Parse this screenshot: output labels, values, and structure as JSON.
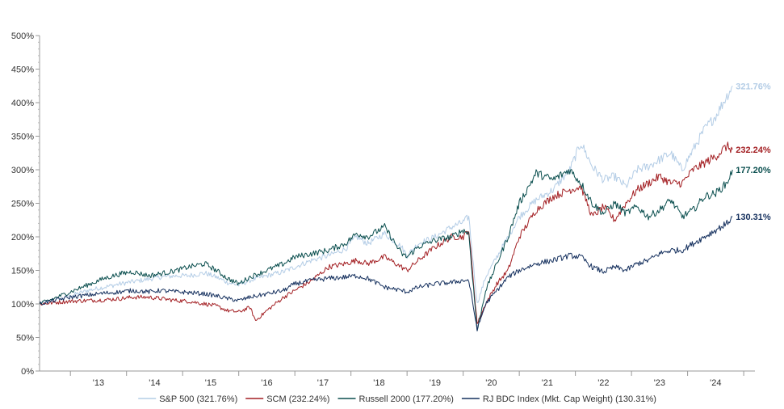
{
  "chart_data": {
    "type": "line",
    "title": "",
    "xlabel": "",
    "ylabel": "",
    "ylim": [
      0,
      500
    ],
    "y_ticks": [
      0,
      50,
      100,
      150,
      200,
      250,
      300,
      350,
      400,
      450,
      500
    ],
    "y_tick_suffix": "%",
    "xlim": [
      2012.45,
      2025.2
    ],
    "x_ticks": [
      {
        "label": "'13",
        "x": 2013.5
      },
      {
        "label": "'14",
        "x": 2014.5
      },
      {
        "label": "'15",
        "x": 2015.5
      },
      {
        "label": "'16",
        "x": 2016.5
      },
      {
        "label": "'17",
        "x": 2017.5
      },
      {
        "label": "'18",
        "x": 2018.5
      },
      {
        "label": "'19",
        "x": 2019.5
      },
      {
        "label": "'20",
        "x": 2020.5
      },
      {
        "label": "'21",
        "x": 2021.5
      },
      {
        "label": "'22",
        "x": 2022.5
      },
      {
        "label": "'23",
        "x": 2023.5
      },
      {
        "label": "'24",
        "x": 2024.5
      }
    ],
    "x_boundaries": [
      2013,
      2014,
      2015,
      2016,
      2017,
      2018,
      2019,
      2020,
      2021,
      2022,
      2023,
      2024,
      2025
    ],
    "grid": false,
    "legend_position": "bottom",
    "series": [
      {
        "name": "S&P 500 (321.76%)",
        "end_label": "321.76%",
        "color": "#b4cde6",
        "x": [
          2012.45,
          2012.7,
          2013.0,
          2013.3,
          2013.6,
          2013.9,
          2014.1,
          2014.4,
          2014.6,
          2014.9,
          2015.1,
          2015.4,
          2015.6,
          2015.8,
          2016.0,
          2016.2,
          2016.5,
          2016.8,
          2017.0,
          2017.3,
          2017.6,
          2017.9,
          2018.1,
          2018.3,
          2018.6,
          2018.9,
          2019.0,
          2019.2,
          2019.5,
          2019.8,
          2020.0,
          2020.1,
          2020.25,
          2020.4,
          2020.6,
          2020.8,
          2021.0,
          2021.3,
          2021.6,
          2021.9,
          2022.1,
          2022.3,
          2022.5,
          2022.7,
          2022.9,
          2023.1,
          2023.3,
          2023.5,
          2023.7,
          2023.9,
          2024.1,
          2024.3,
          2024.5,
          2024.7,
          2024.8
        ],
        "y": [
          100,
          105,
          112,
          120,
          125,
          130,
          133,
          137,
          140,
          142,
          142,
          146,
          140,
          132,
          128,
          135,
          142,
          148,
          155,
          165,
          172,
          182,
          200,
          190,
          205,
          185,
          172,
          190,
          200,
          215,
          222,
          230,
          100,
          140,
          170,
          200,
          230,
          255,
          270,
          300,
          340,
          305,
          285,
          290,
          275,
          300,
          305,
          315,
          325,
          300,
          330,
          360,
          380,
          410,
          425
        ]
      },
      {
        "name": "SCM (232.24%)",
        "end_label": "232.24%",
        "color": "#a31f23",
        "x": [
          2012.45,
          2012.7,
          2013.0,
          2013.3,
          2013.6,
          2013.9,
          2014.1,
          2014.4,
          2014.6,
          2014.9,
          2015.1,
          2015.4,
          2015.6,
          2015.8,
          2016.0,
          2016.2,
          2016.3,
          2016.5,
          2016.8,
          2017.0,
          2017.3,
          2017.6,
          2017.9,
          2018.1,
          2018.3,
          2018.6,
          2018.9,
          2019.0,
          2019.2,
          2019.5,
          2019.8,
          2020.0,
          2020.1,
          2020.25,
          2020.4,
          2020.6,
          2020.8,
          2021.0,
          2021.3,
          2021.6,
          2021.9,
          2022.1,
          2022.3,
          2022.5,
          2022.7,
          2022.9,
          2023.1,
          2023.3,
          2023.5,
          2023.7,
          2023.9,
          2024.1,
          2024.3,
          2024.5,
          2024.7,
          2024.8
        ],
        "y": [
          100,
          102,
          104,
          105,
          106,
          108,
          110,
          110,
          108,
          105,
          104,
          100,
          97,
          90,
          88,
          95,
          75,
          90,
          110,
          120,
          135,
          155,
          160,
          165,
          160,
          170,
          155,
          150,
          165,
          185,
          200,
          200,
          210,
          70,
          100,
          130,
          150,
          200,
          240,
          260,
          270,
          275,
          230,
          245,
          225,
          250,
          270,
          280,
          290,
          280,
          280,
          300,
          310,
          320,
          335,
          330
        ]
      },
      {
        "name": "Russell 2000 (177.20%)",
        "end_label": "177.20%",
        "color": "#0b4f4f",
        "x": [
          2012.45,
          2012.7,
          2013.0,
          2013.3,
          2013.6,
          2013.9,
          2014.1,
          2014.4,
          2014.6,
          2014.9,
          2015.1,
          2015.4,
          2015.6,
          2015.8,
          2016.0,
          2016.2,
          2016.5,
          2016.8,
          2017.0,
          2017.3,
          2017.6,
          2017.9,
          2018.1,
          2018.3,
          2018.6,
          2018.9,
          2019.0,
          2019.2,
          2019.5,
          2019.8,
          2020.0,
          2020.1,
          2020.25,
          2020.4,
          2020.6,
          2020.8,
          2021.0,
          2021.3,
          2021.6,
          2021.9,
          2022.1,
          2022.3,
          2022.5,
          2022.7,
          2022.9,
          2023.1,
          2023.3,
          2023.5,
          2023.7,
          2023.9,
          2024.1,
          2024.3,
          2024.5,
          2024.7,
          2024.8
        ],
        "y": [
          100,
          108,
          118,
          128,
          138,
          145,
          148,
          142,
          145,
          150,
          155,
          160,
          150,
          138,
          130,
          140,
          150,
          160,
          170,
          175,
          180,
          190,
          205,
          200,
          215,
          175,
          170,
          185,
          195,
          200,
          210,
          205,
          60,
          120,
          160,
          200,
          250,
          295,
          285,
          300,
          280,
          250,
          235,
          250,
          235,
          245,
          230,
          240,
          255,
          230,
          240,
          260,
          265,
          280,
          300
        ]
      },
      {
        "name": "RJ BDC Index (Mkt. Cap Weight) (130.31%)",
        "end_label": "130.31%",
        "color": "#15305e",
        "x": [
          2012.45,
          2012.7,
          2013.0,
          2013.3,
          2013.6,
          2013.9,
          2014.1,
          2014.4,
          2014.6,
          2014.9,
          2015.1,
          2015.4,
          2015.6,
          2015.8,
          2016.0,
          2016.2,
          2016.5,
          2016.8,
          2017.0,
          2017.3,
          2017.6,
          2017.9,
          2018.1,
          2018.3,
          2018.6,
          2018.9,
          2019.0,
          2019.2,
          2019.5,
          2019.8,
          2020.0,
          2020.1,
          2020.25,
          2020.4,
          2020.6,
          2020.8,
          2021.0,
          2021.3,
          2021.6,
          2021.9,
          2022.1,
          2022.3,
          2022.5,
          2022.7,
          2022.9,
          2023.1,
          2023.3,
          2023.5,
          2023.7,
          2023.9,
          2024.1,
          2024.3,
          2024.5,
          2024.7,
          2024.8
        ],
        "y": [
          100,
          105,
          110,
          113,
          116,
          118,
          120,
          118,
          120,
          118,
          117,
          115,
          112,
          108,
          105,
          110,
          115,
          120,
          130,
          135,
          138,
          140,
          142,
          138,
          125,
          120,
          118,
          125,
          130,
          132,
          135,
          135,
          62,
          100,
          120,
          140,
          150,
          160,
          165,
          172,
          170,
          155,
          148,
          155,
          150,
          160,
          165,
          175,
          180,
          180,
          190,
          200,
          210,
          220,
          230
        ]
      }
    ]
  }
}
